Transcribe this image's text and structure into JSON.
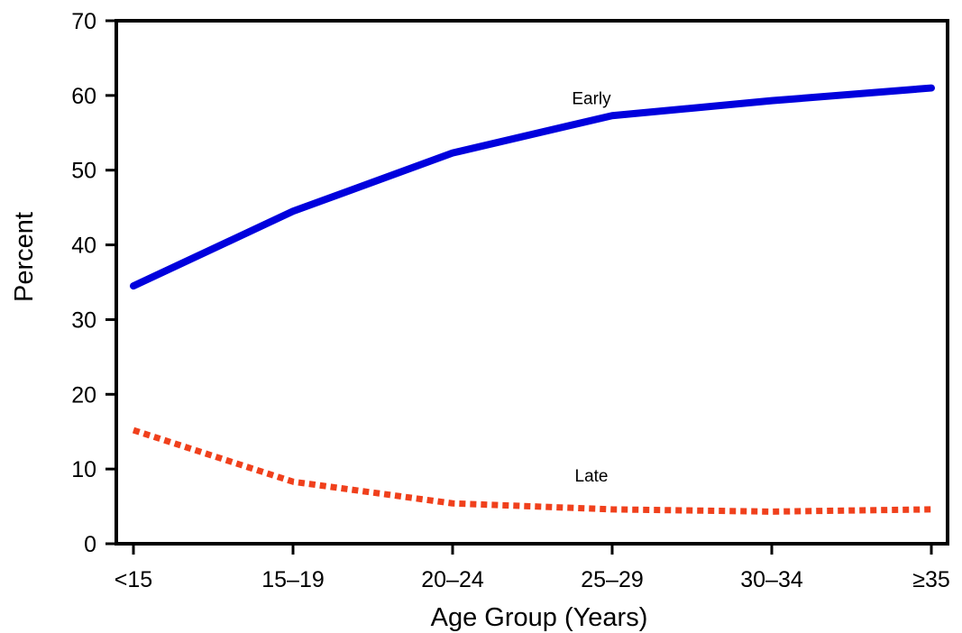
{
  "chart_data": {
    "type": "line",
    "title": "",
    "xlabel": "Age Group (Years)",
    "ylabel": "Percent",
    "categories": [
      "<15",
      "15–19",
      "20–24",
      "25–29",
      "30–34",
      "≥35"
    ],
    "ylim": [
      0,
      70
    ],
    "yticks": [
      0,
      10,
      20,
      30,
      40,
      50,
      60,
      70
    ],
    "grid": false,
    "series": [
      {
        "name": "Early",
        "values": [
          34.5,
          44.5,
          52.3,
          57.3,
          59.3,
          61.0
        ],
        "color": "#0000dd",
        "style": "solid"
      },
      {
        "name": "Late",
        "values": [
          15.2,
          8.3,
          5.4,
          4.6,
          4.3,
          4.6
        ],
        "color": "#f0401c",
        "style": "dotted"
      }
    ]
  }
}
